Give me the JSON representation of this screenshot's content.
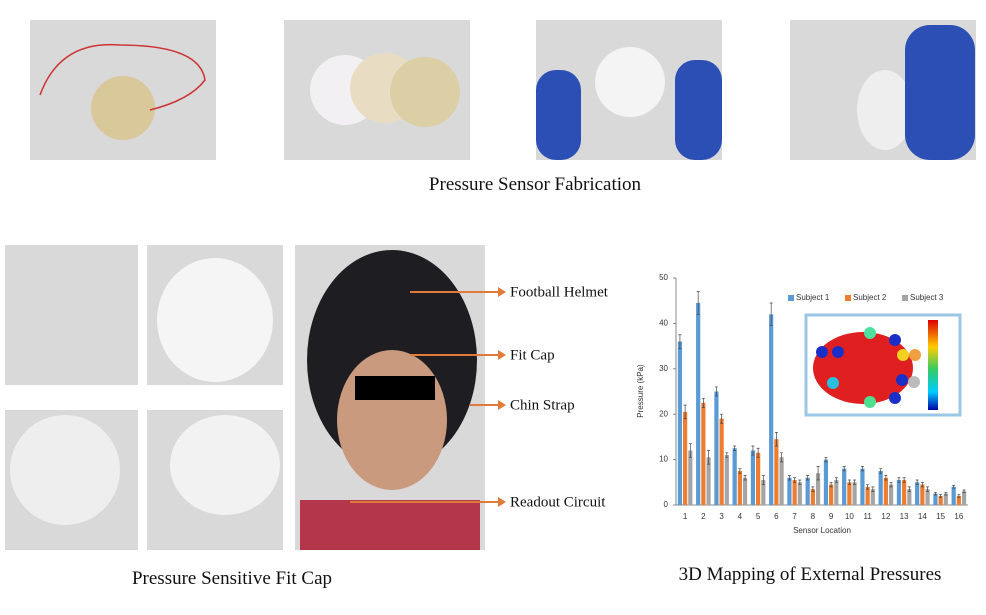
{
  "captions": {
    "fabrication": "Pressure Sensor Fabrication",
    "fit_cap": "Pressure Sensitive Fit Cap",
    "mapping": "3D Mapping of External Pressures"
  },
  "labels": [
    "Football Helmet",
    "Fit Cap",
    "Chin Strap",
    "Readout Circuit"
  ],
  "chart_data": {
    "type": "bar",
    "y_label": "Pressure (kPa)",
    "x_label": "Sensor Location",
    "categories": [
      "1",
      "2",
      "3",
      "4",
      "5",
      "6",
      "7",
      "8",
      "9",
      "10",
      "11",
      "12",
      "13",
      "14",
      "15",
      "16"
    ],
    "series": [
      {
        "name": "Subject 1",
        "color": "#5b9bd5",
        "values": [
          36,
          44.5,
          25,
          12.5,
          12,
          42,
          6,
          6,
          10,
          8,
          8,
          7.5,
          5.5,
          5,
          2.5,
          4
        ],
        "errors": [
          1.5,
          2.5,
          1,
          0.5,
          1,
          2.5,
          0.5,
          0.5,
          0.5,
          0.5,
          0.5,
          0.5,
          0.5,
          0.5,
          0.3,
          0.3
        ]
      },
      {
        "name": "Subject 2",
        "color": "#ed7d31",
        "values": [
          20.5,
          22.5,
          19,
          7.5,
          11.5,
          14.5,
          5.5,
          3.5,
          4.5,
          5,
          4,
          6,
          5.5,
          4.5,
          2,
          2
        ],
        "errors": [
          1.5,
          1,
          1,
          0.5,
          1,
          1.5,
          0.5,
          0.5,
          0.5,
          0.5,
          0.5,
          0.5,
          0.5,
          0.5,
          0.3,
          0.3
        ]
      },
      {
        "name": "Subject 3",
        "color": "#a5a5a5",
        "values": [
          12,
          10.5,
          11,
          6,
          5.5,
          10.5,
          5,
          7,
          5.5,
          5,
          3.5,
          4.5,
          3.5,
          3.5,
          2.5,
          3
        ],
        "errors": [
          1.5,
          1.5,
          0.5,
          0.5,
          1,
          1,
          0.5,
          1.5,
          0.5,
          0.5,
          0.5,
          0.5,
          0.5,
          0.5,
          0.3,
          0.3
        ]
      }
    ],
    "ylim": [
      0,
      50
    ],
    "yticks": [
      0,
      10,
      20,
      30,
      40,
      50
    ],
    "legend": "top"
  }
}
